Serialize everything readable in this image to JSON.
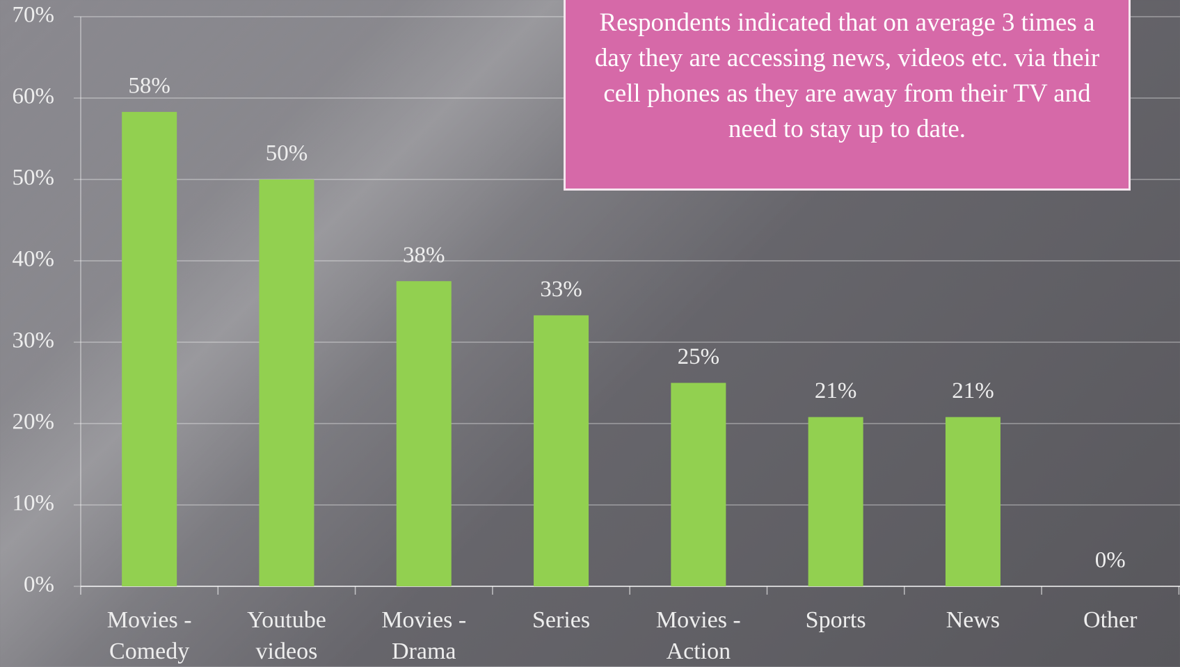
{
  "chart_data": {
    "type": "bar",
    "categories": [
      "Movies - Comedy",
      "Youtube videos",
      "Movies - Drama",
      "Series",
      "Movies - Action",
      "Sports",
      "News",
      "Other"
    ],
    "values": [
      58.3,
      50,
      37.5,
      33.3,
      25,
      20.8,
      20.8,
      0
    ],
    "value_labels": [
      "58%",
      "50%",
      "38%",
      "33%",
      "25%",
      "21%",
      "21%",
      "0%"
    ],
    "color": "#92d050",
    "ylim": [
      0,
      70
    ],
    "yticks": [
      {
        "value": 0,
        "label": "0%"
      },
      {
        "value": 10,
        "label": "10%"
      },
      {
        "value": 20,
        "label": "20%"
      },
      {
        "value": 30,
        "label": "30%"
      },
      {
        "value": 40,
        "label": "40%"
      },
      {
        "value": 50,
        "label": "50%"
      },
      {
        "value": 60,
        "label": "60%"
      },
      {
        "value": 70,
        "label": "70%"
      }
    ],
    "grid": true,
    "annotation": "Respondents indicated that on average 3 times a day they are accessing news, videos etc. via their cell phones as they are away from their TV and need to stay up to date."
  }
}
